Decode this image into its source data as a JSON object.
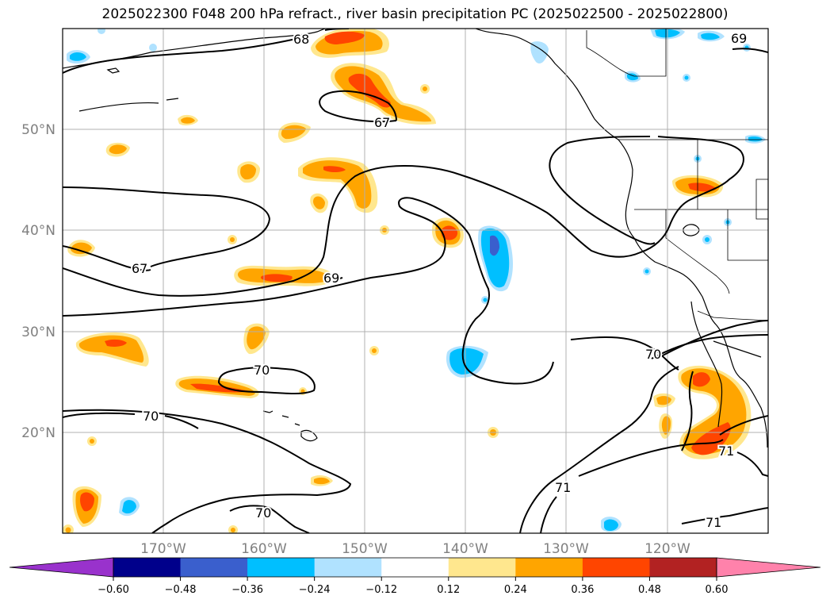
{
  "title": "2025022300 F048 200 hPa refract., river basin precipitation PC (2025022500 - 2025022800)",
  "map": {
    "lon_labels": [
      "170°W",
      "160°W",
      "150°W",
      "140°W",
      "130°W",
      "120°W"
    ],
    "lat_labels": [
      "50°N",
      "40°N",
      "30°N",
      "20°N"
    ],
    "gridlines": true,
    "contour_labels": [
      "68",
      "69",
      "67",
      "67",
      "69",
      "70",
      "70",
      "70",
      "70",
      "71",
      "71",
      "71"
    ]
  },
  "colorbar": {
    "ticks": [
      "−0.60",
      "−0.48",
      "−0.36",
      "−0.24",
      "−0.12",
      "0.12",
      "0.24",
      "0.36",
      "0.48",
      "0.60"
    ],
    "colors": [
      "#9932cc",
      "#00008b",
      "#3a5fcd",
      "#00bfff",
      "#b0e2ff",
      "#ffffff",
      "#ffe78e",
      "#ffa500",
      "#ff4500",
      "#b22222",
      "#ff82ab"
    ],
    "extend": "both"
  }
}
